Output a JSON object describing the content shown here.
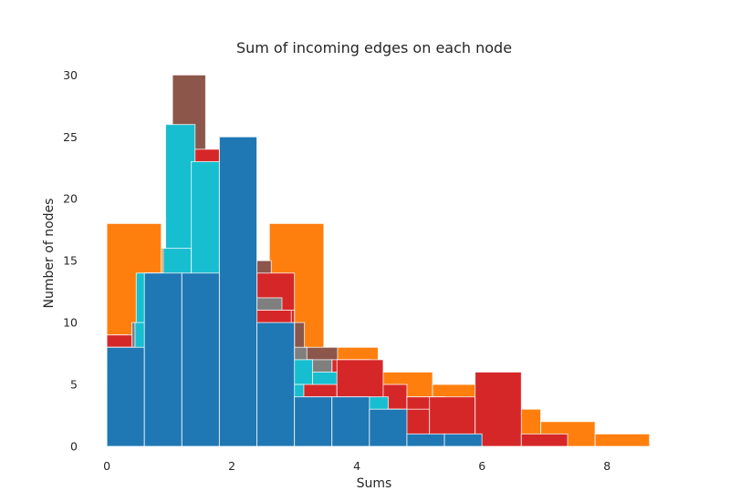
{
  "chart_data": {
    "type": "bar",
    "subtype": "overlaid-histogram",
    "title": "Sum of incoming edges on each node",
    "xlabel": "Sums",
    "ylabel": "Number of nodes",
    "xlim": [
      -0.25,
      8.8
    ],
    "ylim": [
      0,
      31.2
    ],
    "xticks": [
      0,
      2,
      4,
      6,
      8
    ],
    "yticks": [
      0,
      5,
      10,
      15,
      20,
      25,
      30
    ],
    "grid": false,
    "legend": "none",
    "series": [
      {
        "color": "#ff7f0e",
        "bins": [
          {
            "x0": 0.0,
            "x1": 0.87,
            "count": 18
          },
          {
            "x0": 0.87,
            "x1": 1.74,
            "count": 16
          },
          {
            "x0": 1.74,
            "x1": 2.6,
            "count": 14
          },
          {
            "x0": 2.6,
            "x1": 3.47,
            "count": 18
          },
          {
            "x0": 3.47,
            "x1": 4.34,
            "count": 8
          },
          {
            "x0": 4.34,
            "x1": 5.21,
            "count": 6
          },
          {
            "x0": 5.21,
            "x1": 6.08,
            "count": 5
          },
          {
            "x0": 6.08,
            "x1": 6.94,
            "count": 3
          },
          {
            "x0": 6.94,
            "x1": 7.81,
            "count": 2
          },
          {
            "x0": 7.81,
            "x1": 8.68,
            "count": 1
          }
        ]
      },
      {
        "color": "#8c564b",
        "bins": [
          {
            "x0": 0.0,
            "x1": 0.5,
            "count": 9
          },
          {
            "x0": 0.5,
            "x1": 1.05,
            "count": 10
          },
          {
            "x0": 1.05,
            "x1": 1.58,
            "count": 30
          },
          {
            "x0": 1.58,
            "x1": 2.1,
            "count": 18
          },
          {
            "x0": 2.1,
            "x1": 2.63,
            "count": 15
          },
          {
            "x0": 2.63,
            "x1": 3.16,
            "count": 10
          },
          {
            "x0": 3.16,
            "x1": 3.69,
            "count": 8
          },
          {
            "x0": 3.69,
            "x1": 4.21,
            "count": 4
          },
          {
            "x0": 4.21,
            "x1": 4.74,
            "count": 3
          },
          {
            "x0": 4.74,
            "x1": 5.27,
            "count": 2
          }
        ]
      },
      {
        "color": "#d62728",
        "bins": [
          {
            "x0": 0.0,
            "x1": 0.6,
            "count": 9
          },
          {
            "x0": 0.6,
            "x1": 1.2,
            "count": 8
          },
          {
            "x0": 1.2,
            "x1": 1.8,
            "count": 24
          },
          {
            "x0": 1.8,
            "x1": 2.4,
            "count": 14
          },
          {
            "x0": 2.4,
            "x1": 3.0,
            "count": 14
          },
          {
            "x0": 3.0,
            "x1": 3.6,
            "count": 6
          },
          {
            "x0": 3.6,
            "x1": 4.2,
            "count": 7
          },
          {
            "x0": 4.2,
            "x1": 4.8,
            "count": 5
          },
          {
            "x0": 4.8,
            "x1": 5.4,
            "count": 4
          },
          {
            "x0": 5.4,
            "x1": 6.0,
            "count": 2
          }
        ]
      },
      {
        "color": "#7f7f7f",
        "bins": [
          {
            "x0": 0.0,
            "x1": 0.4,
            "count": 8
          },
          {
            "x0": 0.4,
            "x1": 0.8,
            "count": 10
          },
          {
            "x0": 0.8,
            "x1": 1.2,
            "count": 8
          },
          {
            "x0": 1.2,
            "x1": 1.6,
            "count": 17
          },
          {
            "x0": 1.6,
            "x1": 2.0,
            "count": 20
          },
          {
            "x0": 2.0,
            "x1": 2.4,
            "count": 15
          },
          {
            "x0": 2.4,
            "x1": 2.8,
            "count": 12
          },
          {
            "x0": 2.8,
            "x1": 3.2,
            "count": 8
          },
          {
            "x0": 3.2,
            "x1": 3.6,
            "count": 7
          },
          {
            "x0": 3.6,
            "x1": 4.0,
            "count": 5
          }
        ]
      },
      {
        "color": "#d62728",
        "bins": [
          {
            "x0": 0.0,
            "x1": 0.6,
            "count": 8
          },
          {
            "x0": 0.6,
            "x1": 1.2,
            "count": 14
          },
          {
            "x0": 1.2,
            "x1": 1.8,
            "count": 21
          },
          {
            "x0": 1.8,
            "x1": 2.4,
            "count": 11
          },
          {
            "x0": 2.4,
            "x1": 3.0,
            "count": 11
          },
          {
            "x0": 3.0,
            "x1": 3.6,
            "count": 5
          },
          {
            "x0": 3.6,
            "x1": 4.2,
            "count": 4
          },
          {
            "x0": 4.2,
            "x1": 4.8,
            "count": 2
          },
          {
            "x0": 4.8,
            "x1": 5.4,
            "count": 4
          },
          {
            "x0": 5.4,
            "x1": 6.0,
            "count": 2
          }
        ]
      },
      {
        "color": "#17becf",
        "bins": [
          {
            "x0": 0.0,
            "x1": 0.47,
            "count": 7
          },
          {
            "x0": 0.47,
            "x1": 0.94,
            "count": 14
          },
          {
            "x0": 0.94,
            "x1": 1.41,
            "count": 26
          },
          {
            "x0": 1.41,
            "x1": 1.88,
            "count": 17
          },
          {
            "x0": 1.88,
            "x1": 2.35,
            "count": 14
          },
          {
            "x0": 2.35,
            "x1": 2.82,
            "count": 10
          },
          {
            "x0": 2.82,
            "x1": 3.29,
            "count": 7
          },
          {
            "x0": 3.29,
            "x1": 3.76,
            "count": 6
          },
          {
            "x0": 3.76,
            "x1": 4.23,
            "count": 3
          },
          {
            "x0": 4.23,
            "x1": 4.7,
            "count": 3
          }
        ]
      },
      {
        "color": "#d62728",
        "bins": [
          {
            "x0": 0.0,
            "x1": 0.74,
            "count": 6
          },
          {
            "x0": 0.74,
            "x1": 1.47,
            "count": 13
          },
          {
            "x0": 1.47,
            "x1": 2.21,
            "count": 11
          },
          {
            "x0": 2.21,
            "x1": 2.95,
            "count": 11
          },
          {
            "x0": 2.95,
            "x1": 3.68,
            "count": 5
          },
          {
            "x0": 3.68,
            "x1": 4.42,
            "count": 7
          },
          {
            "x0": 4.42,
            "x1": 5.16,
            "count": 3
          },
          {
            "x0": 5.16,
            "x1": 5.89,
            "count": 4
          },
          {
            "x0": 5.89,
            "x1": 6.63,
            "count": 6
          },
          {
            "x0": 6.63,
            "x1": 7.37,
            "count": 1
          }
        ]
      },
      {
        "color": "#17becf",
        "bins": [
          {
            "x0": 0.0,
            "x1": 0.45,
            "count": 5
          },
          {
            "x0": 0.45,
            "x1": 0.9,
            "count": 10
          },
          {
            "x0": 0.9,
            "x1": 1.35,
            "count": 16
          },
          {
            "x0": 1.35,
            "x1": 1.8,
            "count": 23
          },
          {
            "x0": 1.8,
            "x1": 2.25,
            "count": 14
          },
          {
            "x0": 2.25,
            "x1": 2.7,
            "count": 9
          },
          {
            "x0": 2.7,
            "x1": 3.15,
            "count": 5
          },
          {
            "x0": 3.15,
            "x1": 3.6,
            "count": 4
          },
          {
            "x0": 3.6,
            "x1": 4.05,
            "count": 4
          },
          {
            "x0": 4.05,
            "x1": 4.5,
            "count": 4
          }
        ]
      },
      {
        "color": "#1f77b4",
        "bins": [
          {
            "x0": 0.0,
            "x1": 0.6,
            "count": 8
          },
          {
            "x0": 0.6,
            "x1": 1.2,
            "count": 14
          },
          {
            "x0": 1.2,
            "x1": 1.8,
            "count": 14
          },
          {
            "x0": 1.8,
            "x1": 2.4,
            "count": 25
          },
          {
            "x0": 2.4,
            "x1": 3.0,
            "count": 10
          },
          {
            "x0": 3.0,
            "x1": 3.6,
            "count": 4
          },
          {
            "x0": 3.6,
            "x1": 4.2,
            "count": 4
          },
          {
            "x0": 4.2,
            "x1": 4.8,
            "count": 3
          },
          {
            "x0": 4.8,
            "x1": 5.4,
            "count": 1
          },
          {
            "x0": 5.4,
            "x1": 6.0,
            "count": 1
          }
        ]
      }
    ]
  }
}
